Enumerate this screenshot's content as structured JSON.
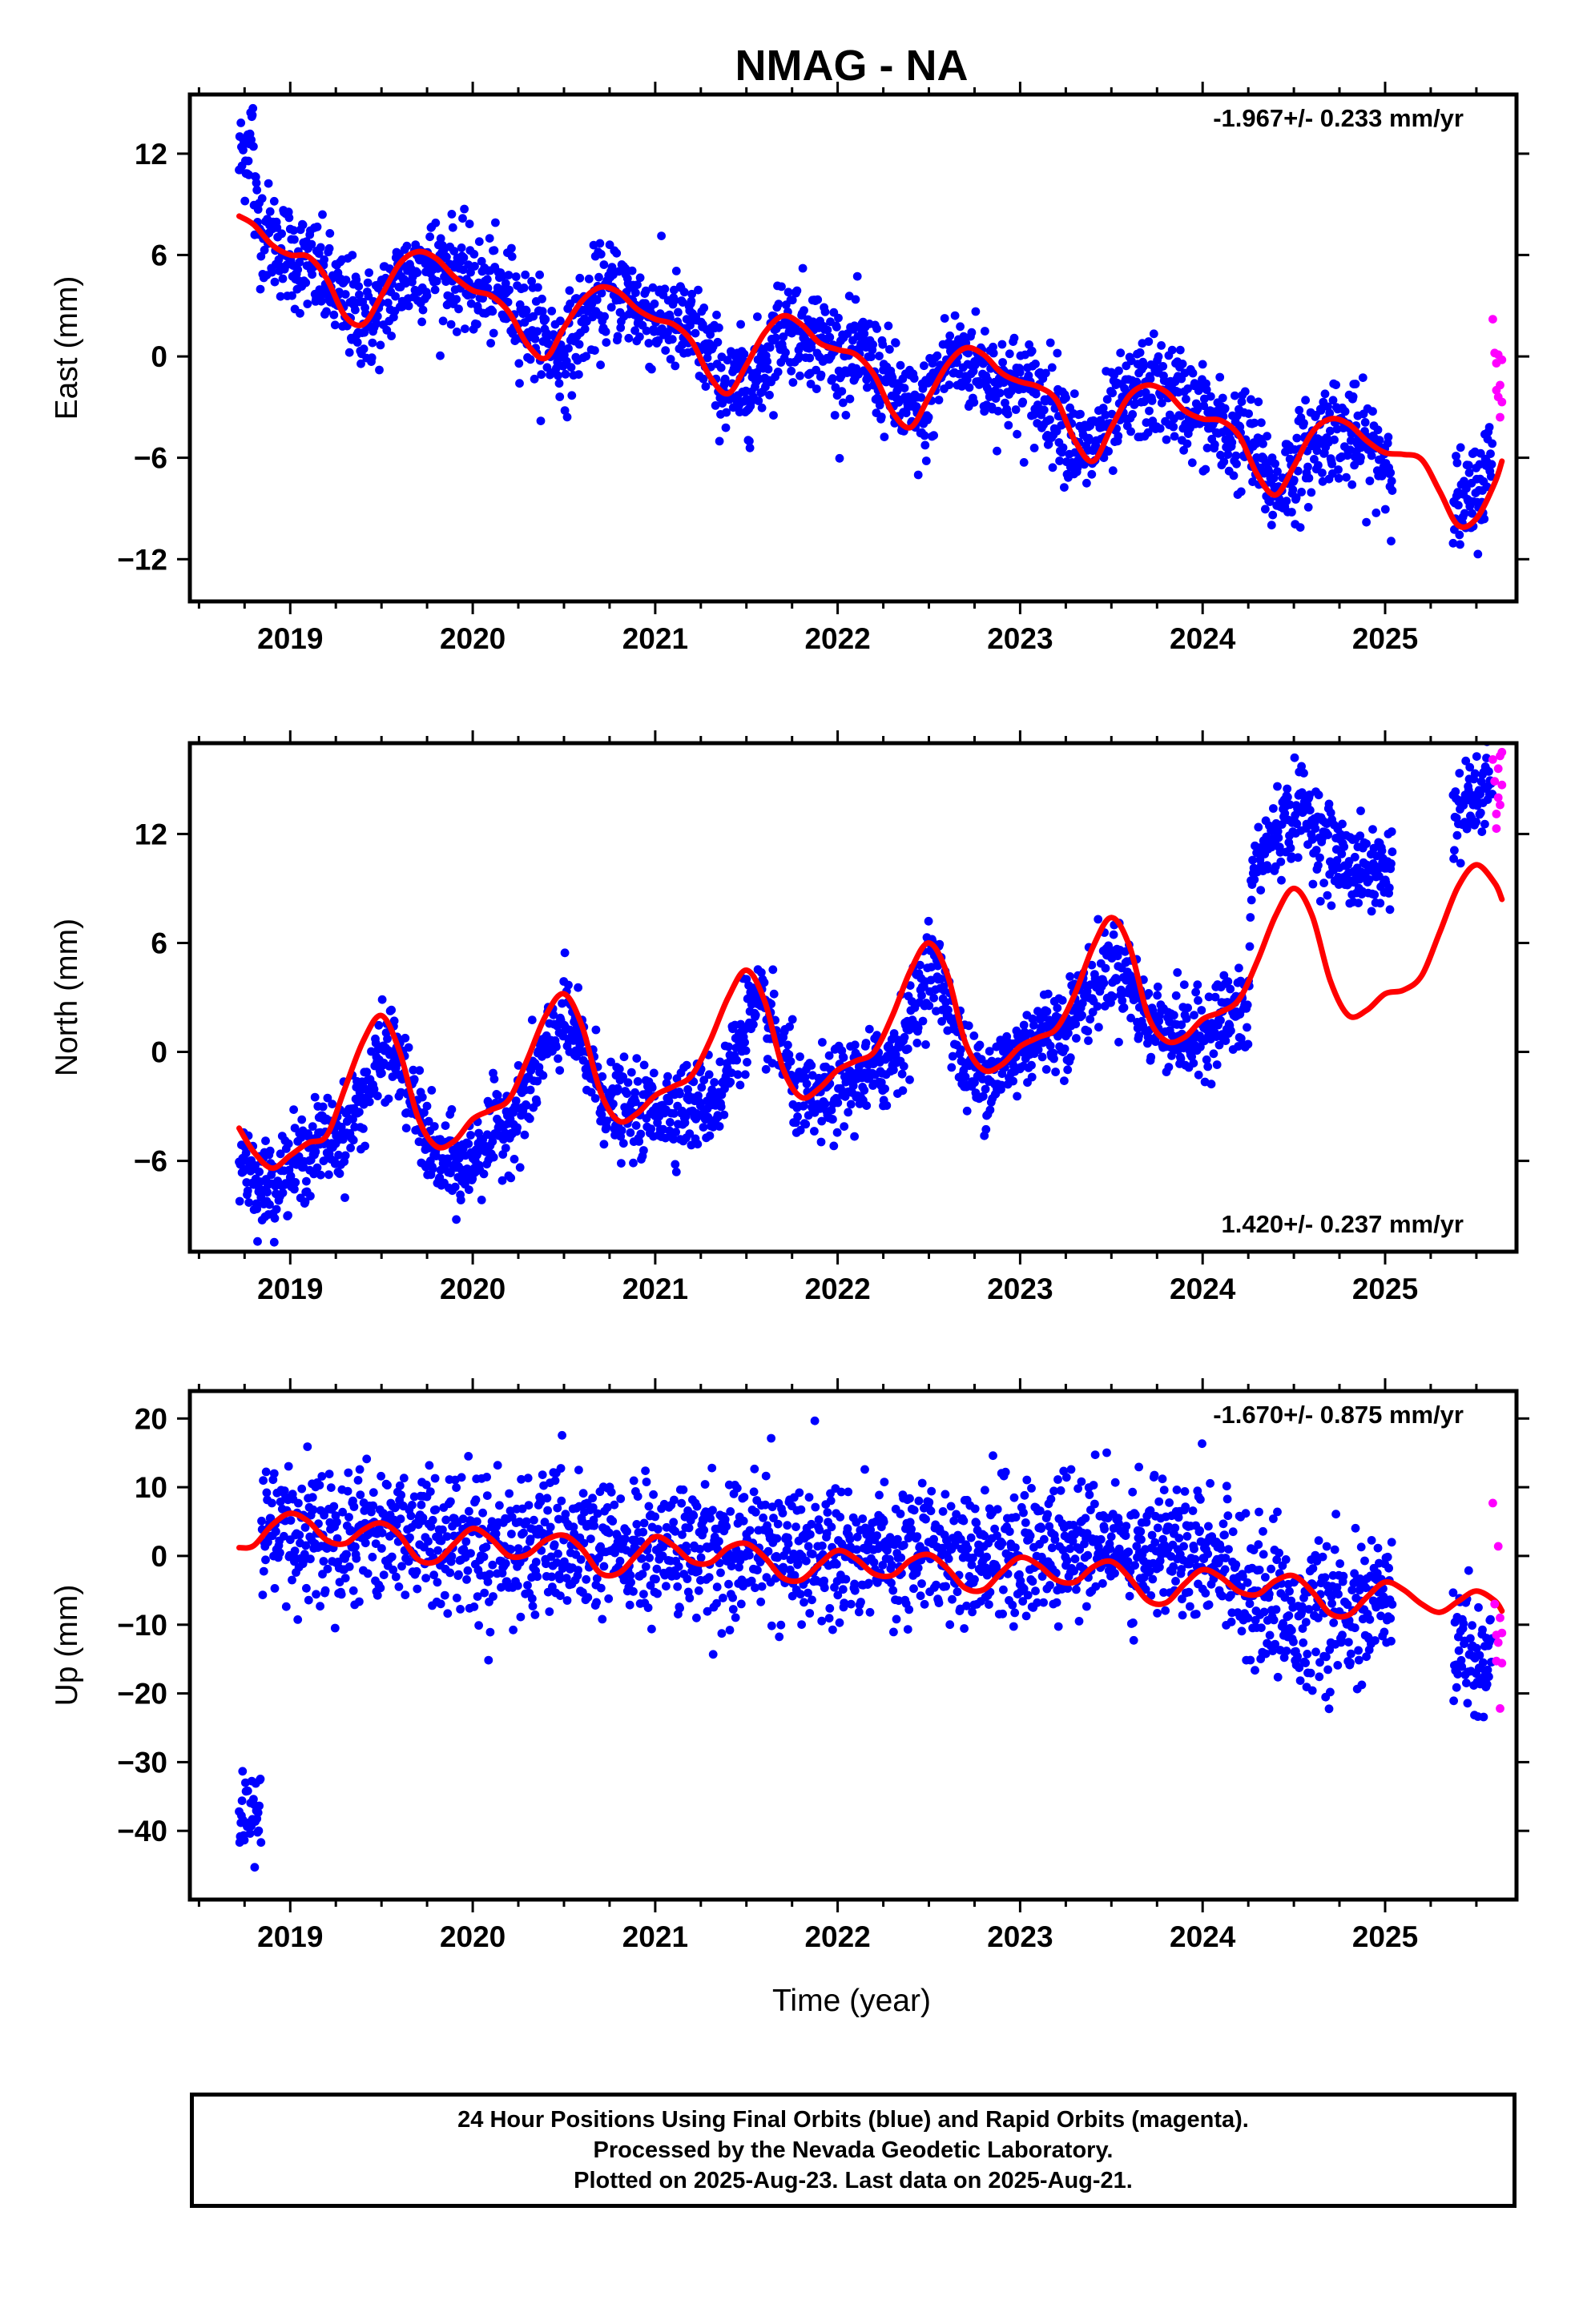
{
  "title": "NMAG - NA",
  "xlabel": "Time (year)",
  "colors": {
    "final": "#0000ff",
    "rapid": "#ff00ff",
    "model": "#ff0000",
    "frame": "#000000"
  },
  "footer": {
    "line1": "24 Hour Positions Using Final Orbits (blue) and Rapid Orbits (magenta).",
    "line2": "Processed by the Nevada Geodetic Laboratory.",
    "line3": "Plotted on 2025-Aug-23. Last data on 2025-Aug-21."
  },
  "chart_data": [
    {
      "type": "scatter",
      "title": "NMAG - NA",
      "ylabel": "East (mm)",
      "xlim": [
        2018.45,
        2025.72
      ],
      "ylim": [
        -14.5,
        15.5
      ],
      "xticks": [
        2019,
        2020,
        2021,
        2022,
        2023,
        2024,
        2025
      ],
      "yticks": [
        -12,
        -6,
        0,
        6,
        12
      ],
      "ytick_labels": [
        "−12",
        "−6",
        "0",
        "6",
        "12"
      ],
      "velocity": "-1.967+/- 0.233 mm/yr",
      "velocity_position": "top-right",
      "data_start": 2018.72,
      "data_end": 2025.64,
      "gaps": [
        [
          2025.04,
          2025.37
        ]
      ],
      "rapid_start": 2025.59,
      "series": [
        {
          "name": "Final Orbits",
          "trend": {
            "x": [
              2018.72,
              2018.85,
              2019.0,
              2019.15,
              2019.3,
              2019.45,
              2019.6,
              2019.75,
              2019.9,
              2020.05,
              2020.2,
              2020.35,
              2020.5,
              2020.65,
              2020.8,
              2020.95,
              2021.1,
              2021.25,
              2021.4,
              2021.55,
              2021.7,
              2021.85,
              2022.0,
              2022.15,
              2022.3,
              2022.45,
              2022.6,
              2022.75,
              2022.9,
              2023.05,
              2023.2,
              2023.35,
              2023.5,
              2023.65,
              2023.8,
              2023.95,
              2024.1,
              2024.25,
              2024.4,
              2024.55,
              2024.7,
              2024.85,
              2025.0,
              2025.45,
              2025.64
            ],
            "y": [
              11.5,
              7.5,
              6.0,
              5.0,
              3.0,
              2.0,
              4.5,
              5.5,
              5.0,
              4.0,
              3.5,
              1.5,
              0.0,
              3.0,
              4.0,
              2.5,
              2.0,
              1.0,
              -2.0,
              -1.5,
              2.0,
              1.5,
              0.0,
              0.0,
              -2.0,
              -4.0,
              0.0,
              -0.5,
              -1.5,
              -2.0,
              -3.0,
              -6.0,
              -4.0,
              -2.0,
              -2.0,
              -3.0,
              -4.5,
              -5.0,
              -8.0,
              -6.0,
              -4.0,
              -5.0,
              -6.0,
              -9.0,
              -5.0
            ],
            "x_early": [
              2018.72,
              2018.8
            ],
            "y_early": [
              11.5,
              13.5
            ],
            "spread": 1.5
          }
        },
        {
          "name": "Rapid Orbits",
          "x": [
            2025.59,
            2025.6,
            2025.61,
            2025.61,
            2025.62,
            2025.62,
            2025.63,
            2025.63,
            2025.64,
            2025.64
          ],
          "y": [
            2.2,
            0.2,
            -0.4,
            -2.0,
            0.1,
            -2.4,
            -1.7,
            -3.6,
            -0.2,
            -2.7
          ]
        }
      ],
      "model": {
        "x": [
          2018.72,
          2018.8,
          2018.9,
          2019.0,
          2019.1,
          2019.2,
          2019.3,
          2019.4,
          2019.5,
          2019.6,
          2019.7,
          2019.8,
          2019.9,
          2020.0,
          2020.1,
          2020.2,
          2020.3,
          2020.4,
          2020.5,
          2020.6,
          2020.7,
          2020.8,
          2020.9,
          2021.0,
          2021.1,
          2021.2,
          2021.3,
          2021.4,
          2021.5,
          2021.6,
          2021.7,
          2021.8,
          2021.9,
          2022.0,
          2022.1,
          2022.2,
          2022.3,
          2022.4,
          2022.5,
          2022.6,
          2022.7,
          2022.8,
          2022.9,
          2023.0,
          2023.1,
          2023.2,
          2023.3,
          2023.4,
          2023.5,
          2023.6,
          2023.7,
          2023.8,
          2023.9,
          2024.0,
          2024.1,
          2024.2,
          2024.3,
          2024.4,
          2024.5,
          2024.6,
          2024.7,
          2024.8,
          2024.9,
          2025.0,
          2025.1,
          2025.2,
          2025.3,
          2025.4,
          2025.5,
          2025.6,
          2025.64
        ],
        "y": [
          8.3,
          7.8,
          6.6,
          6.0,
          5.9,
          4.6,
          2.4,
          1.9,
          3.6,
          5.5,
          6.2,
          5.8,
          4.7,
          3.9,
          3.6,
          2.6,
          0.7,
          -0.1,
          1.7,
          3.3,
          4.1,
          3.8,
          2.8,
          2.2,
          1.9,
          0.9,
          -1.2,
          -2.2,
          -0.5,
          1.4,
          2.4,
          1.9,
          0.8,
          0.4,
          0.1,
          -1.1,
          -3.3,
          -4.2,
          -2.4,
          -0.5,
          0.5,
          0.1,
          -1.0,
          -1.5,
          -1.8,
          -2.6,
          -5.0,
          -6.2,
          -4.2,
          -2.3,
          -1.7,
          -2.1,
          -3.2,
          -3.7,
          -3.8,
          -4.7,
          -7.0,
          -8.2,
          -6.5,
          -4.5,
          -3.7,
          -4.0,
          -5.0,
          -5.7,
          -5.8,
          -6.1,
          -8.0,
          -10.0,
          -9.6,
          -7.5,
          -6.2
        ]
      }
    },
    {
      "type": "scatter",
      "ylabel": "North (mm)",
      "xlim": [
        2018.45,
        2025.72
      ],
      "ylim": [
        -11,
        17
      ],
      "xticks": [
        2019,
        2020,
        2021,
        2022,
        2023,
        2024,
        2025
      ],
      "yticks": [
        -6,
        0,
        6,
        12
      ],
      "ytick_labels": [
        "−6",
        "0",
        "6",
        "12"
      ],
      "velocity": "1.420+/- 0.237 mm/yr",
      "velocity_position": "bottom-right",
      "data_start": 2018.72,
      "data_end": 2025.64,
      "gaps": [
        [
          2025.04,
          2025.37
        ]
      ],
      "rapid_start": 2025.59,
      "series": [
        {
          "name": "Final Orbits",
          "trend": {
            "x": [
              2018.72,
              2018.85,
              2019.0,
              2019.15,
              2019.3,
              2019.45,
              2019.55,
              2019.7,
              2019.8,
              2019.95,
              2020.1,
              2020.25,
              2020.4,
              2020.5,
              2020.6,
              2020.75,
              2020.9,
              2021.05,
              2021.2,
              2021.35,
              2021.5,
              2021.6,
              2021.7,
              2021.8,
              2021.95,
              2022.1,
              2022.25,
              2022.4,
              2022.5,
              2022.6,
              2022.7,
              2022.8,
              2022.95,
              2023.1,
              2023.25,
              2023.4,
              2023.5,
              2023.6,
              2023.7,
              2023.8,
              2023.95,
              2024.1,
              2024.25,
              2024.27,
              2024.4,
              2024.55,
              2024.7,
              2024.85,
              2025.0,
              2025.37,
              2025.5,
              2025.64
            ],
            "y": [
              -5.5,
              -7.5,
              -6.5,
              -5.0,
              -4.5,
              -1.5,
              0.5,
              -3.5,
              -6.0,
              -6.5,
              -4.5,
              -3.5,
              0.0,
              2.0,
              0.0,
              -3.0,
              -3.5,
              -3.0,
              -3.0,
              -2.5,
              2.0,
              2.0,
              0.0,
              -3.0,
              -2.5,
              -1.5,
              -1.0,
              1.5,
              5.0,
              3.0,
              -1.0,
              -1.5,
              -0.5,
              1.0,
              1.5,
              3.5,
              5.0,
              4.0,
              1.5,
              1.5,
              0.5,
              2.0,
              2.0,
              10.0,
              12.0,
              13.5,
              11.0,
              10.0,
              10.0,
              13.0,
              14.0,
              15.5
            ],
            "spread": 1.2
          }
        },
        {
          "name": "Rapid Orbits",
          "x": [
            2025.59,
            2025.6,
            2025.61,
            2025.61,
            2025.62,
            2025.62,
            2025.63,
            2025.63,
            2025.64,
            2025.64
          ],
          "y": [
            16.1,
            14.9,
            13.1,
            12.3,
            15.6,
            14.0,
            16.3,
            13.6,
            14.7,
            16.5
          ]
        }
      ],
      "model": {
        "x": [
          2018.72,
          2018.8,
          2018.9,
          2019.0,
          2019.1,
          2019.2,
          2019.3,
          2019.4,
          2019.5,
          2019.6,
          2019.7,
          2019.8,
          2019.9,
          2020.0,
          2020.1,
          2020.2,
          2020.3,
          2020.4,
          2020.5,
          2020.6,
          2020.7,
          2020.8,
          2020.9,
          2021.0,
          2021.1,
          2021.2,
          2021.3,
          2021.4,
          2021.5,
          2021.6,
          2021.7,
          2021.8,
          2021.9,
          2022.0,
          2022.1,
          2022.2,
          2022.3,
          2022.4,
          2022.5,
          2022.6,
          2022.7,
          2022.8,
          2022.9,
          2023.0,
          2023.1,
          2023.2,
          2023.3,
          2023.4,
          2023.5,
          2023.6,
          2023.7,
          2023.8,
          2023.9,
          2024.0,
          2024.1,
          2024.2,
          2024.3,
          2024.4,
          2024.5,
          2024.6,
          2024.7,
          2024.8,
          2024.9,
          2025.0,
          2025.1,
          2025.2,
          2025.3,
          2025.4,
          2025.5,
          2025.6,
          2025.64
        ],
        "y": [
          -4.2,
          -5.5,
          -6.4,
          -5.7,
          -5.0,
          -4.6,
          -2.0,
          0.6,
          2.0,
          0.0,
          -3.6,
          -5.2,
          -4.9,
          -3.7,
          -3.2,
          -2.6,
          -0.4,
          2.0,
          3.2,
          1.4,
          -2.2,
          -3.8,
          -3.4,
          -2.4,
          -1.9,
          -1.3,
          0.6,
          3.0,
          4.5,
          2.8,
          -0.9,
          -2.5,
          -2.0,
          -1.0,
          -0.5,
          0.0,
          2.0,
          4.5,
          6.0,
          4.3,
          0.5,
          -1.0,
          -0.7,
          0.3,
          0.8,
          1.3,
          3.2,
          5.8,
          7.4,
          5.8,
          2.0,
          0.6,
          0.8,
          1.8,
          2.2,
          2.9,
          5.0,
          7.5,
          9.0,
          7.5,
          3.9,
          2.0,
          2.3,
          3.2,
          3.4,
          4.2,
          6.6,
          9.1,
          10.3,
          9.3,
          8.4
        ]
      }
    },
    {
      "type": "scatter",
      "ylabel": "Up (mm)",
      "xlabel": "Time (year)",
      "xlim": [
        2018.45,
        2025.72
      ],
      "ylim": [
        -50,
        24
      ],
      "xticks": [
        2019,
        2020,
        2021,
        2022,
        2023,
        2024,
        2025
      ],
      "yticks": [
        -40,
        -30,
        -20,
        -10,
        0,
        10,
        20
      ],
      "ytick_labels": [
        "−40",
        "−30",
        "−20",
        "−10",
        "0",
        "10",
        "20"
      ],
      "velocity": "-1.670+/- 0.875 mm/yr",
      "velocity_position": "top-right",
      "data_start": 2018.72,
      "data_end": 2025.64,
      "gaps": [
        [
          2025.04,
          2025.37
        ]
      ],
      "rapid_start": 2025.59,
      "series": [
        {
          "name": "Final Orbits",
          "early_cluster": {
            "x": [
              2018.72,
              2018.84
            ],
            "y": [
              -48,
              -29
            ]
          },
          "trend": {
            "x": [
              2018.84,
              2019.5,
              2020.0,
              2020.5,
              2021.0,
              2021.5,
              2022.0,
              2022.5,
              2023.0,
              2023.5,
              2024.0,
              2024.25,
              2024.5,
              2024.8,
              2025.0,
              2025.37,
              2025.64
            ],
            "y": [
              3.0,
              4.0,
              2.0,
              1.0,
              0.5,
              1.5,
              0.5,
              1.0,
              0.5,
              1.5,
              2.0,
              -4.0,
              -9.0,
              -9.0,
              -7.0,
              -12.0,
              -16.0
            ],
            "spread": 5.0
          }
        },
        {
          "name": "Rapid Orbits",
          "x": [
            2025.59,
            2025.6,
            2025.61,
            2025.61,
            2025.62,
            2025.62,
            2025.63,
            2025.63,
            2025.64,
            2025.64
          ],
          "y": [
            7.7,
            -7.0,
            -11.5,
            -15.3,
            1.4,
            -12.6,
            -22.2,
            -9.0,
            -15.6,
            -11.2
          ]
        }
      ],
      "model": {
        "x": [
          2018.72,
          2018.8,
          2018.9,
          2019.0,
          2019.1,
          2019.2,
          2019.3,
          2019.4,
          2019.5,
          2019.6,
          2019.7,
          2019.8,
          2019.9,
          2020.0,
          2020.1,
          2020.2,
          2020.3,
          2020.4,
          2020.5,
          2020.6,
          2020.7,
          2020.8,
          2020.9,
          2021.0,
          2021.1,
          2021.2,
          2021.3,
          2021.4,
          2021.5,
          2021.6,
          2021.7,
          2021.8,
          2021.9,
          2022.0,
          2022.1,
          2022.2,
          2022.3,
          2022.4,
          2022.5,
          2022.6,
          2022.7,
          2022.8,
          2022.9,
          2023.0,
          2023.1,
          2023.2,
          2023.3,
          2023.4,
          2023.5,
          2023.6,
          2023.7,
          2023.8,
          2023.9,
          2024.0,
          2024.1,
          2024.2,
          2024.3,
          2024.4,
          2024.5,
          2024.6,
          2024.7,
          2024.8,
          2024.9,
          2025.0,
          2025.1,
          2025.2,
          2025.3,
          2025.4,
          2025.5,
          2025.6,
          2025.64
        ],
        "y": [
          1.2,
          1.5,
          4.5,
          6.2,
          5.0,
          2.3,
          1.8,
          3.8,
          4.8,
          3.0,
          -0.5,
          -0.8,
          1.8,
          4.0,
          2.5,
          0.0,
          0.2,
          2.3,
          3.0,
          1.0,
          -2.5,
          -2.5,
          0.2,
          2.8,
          1.5,
          -0.8,
          -1.0,
          1.2,
          1.8,
          -0.2,
          -3.2,
          -3.5,
          -1.2,
          0.8,
          -0.4,
          -2.6,
          -2.8,
          -0.6,
          0.2,
          -1.8,
          -4.7,
          -4.9,
          -2.3,
          -0.2,
          -1.3,
          -3.5,
          -3.8,
          -1.6,
          -0.8,
          -3.2,
          -6.5,
          -6.8,
          -4.1,
          -2.0,
          -3.1,
          -5.2,
          -5.6,
          -3.6,
          -2.9,
          -5.2,
          -8.4,
          -8.6,
          -6.0,
          -3.8,
          -4.9,
          -7.0,
          -8.2,
          -6.6,
          -5.1,
          -6.5,
          -8.0
        ]
      }
    }
  ]
}
